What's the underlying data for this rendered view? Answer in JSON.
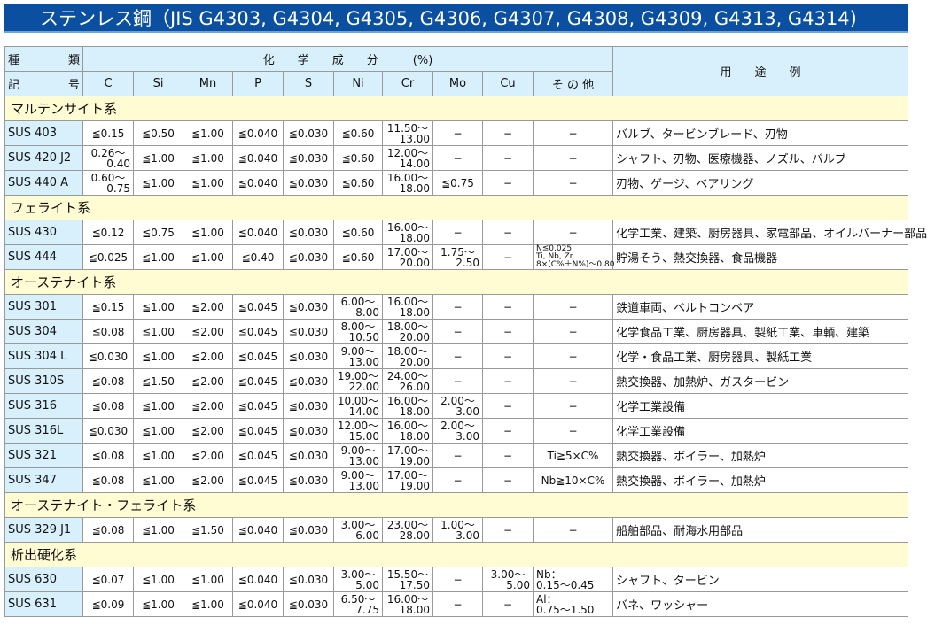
{
  "title": "ステンレス鋼（JIS G4303, G4304, G4305, G4306, G4307, G4308, G4309, G4313, G4314)",
  "header": {
    "kind": [
      "種",
      "類"
    ],
    "symbol": [
      "記",
      "号"
    ],
    "chem": "化　　学　　成　　分　　　(%)",
    "use": "用　　途　　例",
    "columns": [
      "C",
      "Si",
      "Mn",
      "P",
      "S",
      "Ni",
      "Cr",
      "Mo",
      "Cu",
      "そ の 他"
    ]
  },
  "colors": {
    "title_bg": "#0a4fa0",
    "header_bg": "#d8f0fc",
    "category_bg": "#fffbd3"
  },
  "groups": [
    {
      "name": "マルテンサイト系",
      "rows": [
        {
          "grade": "SUS 403",
          "v": [
            "≦0.15",
            "≦0.50",
            "≦1.00",
            "≦0.040",
            "≦0.030",
            "≦0.60",
            "11.50〜|13.00",
            "−",
            "−",
            "−"
          ],
          "use": "バルブ、タービンブレード、刃物"
        },
        {
          "grade": "SUS 420 J2",
          "v": [
            "0.26〜|0.40",
            "≦1.00",
            "≦1.00",
            "≦0.040",
            "≦0.030",
            "≦0.60",
            "12.00〜|14.00",
            "−",
            "−",
            "−"
          ],
          "use": "シャフト、刃物、医療機器、ノズル、バルブ"
        },
        {
          "grade": "SUS 440 A",
          "v": [
            "0.60〜|0.75",
            "≦1.00",
            "≦1.00",
            "≦0.040",
            "≦0.030",
            "≦0.60",
            "16.00〜|18.00",
            "≦0.75",
            "−",
            "−"
          ],
          "use": "刃物、ゲージ、ベアリング"
        }
      ]
    },
    {
      "name": "フェライト系",
      "rows": [
        {
          "grade": "SUS 430",
          "v": [
            "≦0.12",
            "≦0.75",
            "≦1.00",
            "≦0.040",
            "≦0.030",
            "≦0.60",
            "16.00〜|18.00",
            "−",
            "−",
            "−"
          ],
          "use": "化学工業、建築、厨房器具、家電部品、オイルバーナー部品"
        },
        {
          "grade": "SUS 444",
          "v": [
            "≦0.025",
            "≦1.00",
            "≦1.00",
            "≦0.40",
            "≦0.030",
            "≦0.60",
            "17.00〜|20.00",
            "1.75〜|2.50",
            "−",
            "N≦0.025^Ti, Nb, Zr^8×(C%＋N%)〜0.80"
          ],
          "use": "貯湯そう、熱交換器、食品機器"
        }
      ]
    },
    {
      "name": "オーステナイト系",
      "rows": [
        {
          "grade": "SUS 301",
          "v": [
            "≦0.15",
            "≦1.00",
            "≦2.00",
            "≦0.045",
            "≦0.030",
            "6.00〜|8.00",
            "16.00〜|18.00",
            "−",
            "−",
            "−"
          ],
          "use": "鉄道車両、ベルトコンベア"
        },
        {
          "grade": "SUS 304",
          "v": [
            "≦0.08",
            "≦1.00",
            "≦2.00",
            "≦0.045",
            "≦0.030",
            "8.00〜|10.50",
            "18.00〜|20.00",
            "−",
            "−",
            "−"
          ],
          "use": "化学食品工業、厨房器具、製紙工業、車輌、建築"
        },
        {
          "grade": "SUS 304 L",
          "v": [
            "≦0.030",
            "≦1.00",
            "≦2.00",
            "≦0.045",
            "≦0.030",
            "9.00〜|13.00",
            "18.00〜|20.00",
            "−",
            "−",
            "−"
          ],
          "use": "化学・食品工業、厨房器具、製紙工業"
        },
        {
          "grade": "SUS 310S",
          "v": [
            "≦0.08",
            "≦1.50",
            "≦2.00",
            "≦0.045",
            "≦0.030",
            "19.00〜|22.00",
            "24.00〜|26.00",
            "−",
            "−",
            "−"
          ],
          "use": "熱交換器、加熱炉、ガスタービン"
        },
        {
          "grade": "SUS 316",
          "v": [
            "≦0.08",
            "≦1.00",
            "≦2.00",
            "≦0.045",
            "≦0.030",
            "10.00〜|14.00",
            "16.00〜|18.00",
            "2.00〜|3.00",
            "−",
            "−"
          ],
          "use": "化学工業設備"
        },
        {
          "grade": "SUS 316L",
          "v": [
            "≦0.030",
            "≦1.00",
            "≦2.00",
            "≦0.045",
            "≦0.030",
            "12.00〜|15.00",
            "16.00〜|18.00",
            "2.00〜|3.00",
            "−",
            "−"
          ],
          "use": "化学工業設備"
        },
        {
          "grade": "SUS 321",
          "v": [
            "≦0.08",
            "≦1.00",
            "≦2.00",
            "≦0.045",
            "≦0.030",
            "9.00〜|13.00",
            "17.00〜|19.00",
            "−",
            "−",
            "Ti≧5×C%"
          ],
          "use": "熱交換器、ボイラー、加熱炉"
        },
        {
          "grade": "SUS 347",
          "v": [
            "≦0.08",
            "≦1.00",
            "≦2.00",
            "≦0.045",
            "≦0.030",
            "9.00〜|13.00",
            "17.00〜|19.00",
            "−",
            "−",
            "Nb≧10×C%"
          ],
          "use": "熱交換器、ボイラー、加熱炉"
        }
      ]
    },
    {
      "name": "オーステナイト・フェライト系",
      "rows": [
        {
          "grade": "SUS 329 J1",
          "v": [
            "≦0.08",
            "≦1.00",
            "≦1.50",
            "≦0.040",
            "≦0.030",
            "3.00〜|6.00",
            "23.00〜|28.00",
            "1.00〜|3.00",
            "−",
            "−"
          ],
          "use": "船舶部品、耐海水用部品"
        }
      ]
    },
    {
      "name": "析出硬化系",
      "rows": [
        {
          "grade": "SUS 630",
          "v": [
            "≦0.07",
            "≦1.00",
            "≦1.00",
            "≦0.040",
            "≦0.030",
            "3.00〜|5.00",
            "15.50〜|17.50",
            "−",
            "3.00〜|5.00",
            "Nb：~0.15〜0.45"
          ],
          "use": "シャフト、タービン"
        },
        {
          "grade": "SUS 631",
          "v": [
            "≦0.09",
            "≦1.00",
            "≦1.00",
            "≦0.040",
            "≦0.030",
            "6.50〜|7.75",
            "16.00〜|18.00",
            "−",
            "−",
            "Al：~0.75〜1.50"
          ],
          "use": "バネ、ワッシャー"
        }
      ]
    }
  ]
}
